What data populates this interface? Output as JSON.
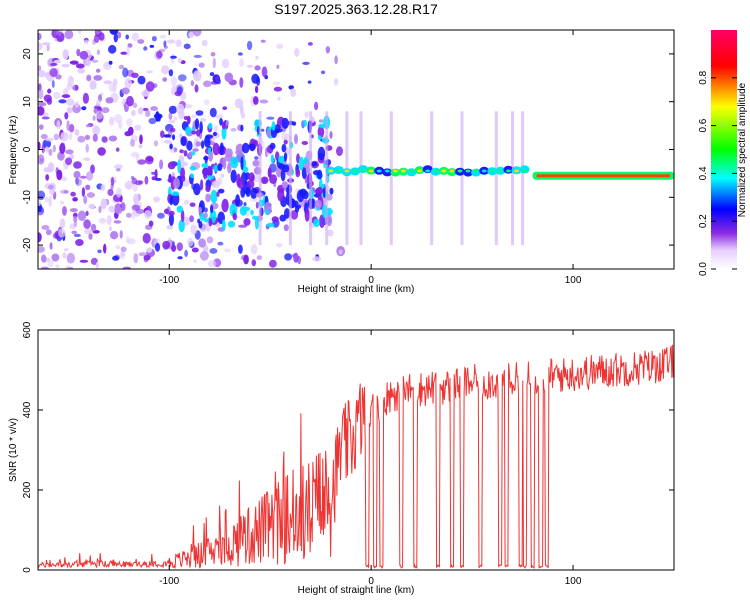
{
  "chart_data": [
    {
      "type": "heatmap",
      "title": "S197.2025.363.12.28.R17",
      "xlabel": "Height of straight line (km)",
      "ylabel": "Frequency (Hz)",
      "xlim": [
        -165,
        150
      ],
      "ylim": [
        -25,
        25
      ],
      "xticks": [
        -100,
        0,
        100
      ],
      "yticks": [
        -20,
        -10,
        0,
        10,
        20
      ],
      "colorbar": {
        "label": "Normalized spectral amplitude",
        "range": [
          0.0,
          1.0
        ],
        "ticks": [
          0.0,
          0.2,
          0.4,
          0.6,
          0.8
        ],
        "colors": [
          "#ffffff",
          "#8a2be2",
          "#0000ff",
          "#00ffff",
          "#00ff00",
          "#ffff00",
          "#ff0000",
          "#ff0066"
        ]
      },
      "ridge": {
        "x_start": -20,
        "x_end": 150,
        "frequency_hz": -4.5,
        "bright_segment_x": [
          80,
          150
        ],
        "bright_frequency_hz": -5.5
      }
    },
    {
      "type": "line",
      "xlabel": "Height of straight line (km)",
      "ylabel": "SNR (10 * v/v)",
      "xlim": [
        -165,
        150
      ],
      "ylim": [
        0,
        600
      ],
      "xticks": [
        -100,
        0,
        100
      ],
      "yticks": [
        0,
        200,
        400,
        600
      ],
      "series": [
        {
          "name": "SNR",
          "color": "#ee3333",
          "x": [
            -165,
            -140,
            -120,
            -100,
            -90,
            -80,
            -70,
            -60,
            -50,
            -40,
            -30,
            -20,
            -15,
            -10,
            -5,
            0,
            5,
            10,
            20,
            30,
            40,
            50,
            60,
            70,
            80,
            90,
            100,
            110,
            120,
            130,
            140,
            150
          ],
          "values": [
            12,
            15,
            14,
            18,
            30,
            45,
            65,
            85,
            110,
            130,
            150,
            180,
            300,
            320,
            380,
            400,
            420,
            440,
            450,
            455,
            460,
            470,
            470,
            475,
            480,
            485,
            490,
            495,
            500,
            505,
            510,
            520
          ]
        }
      ]
    }
  ]
}
